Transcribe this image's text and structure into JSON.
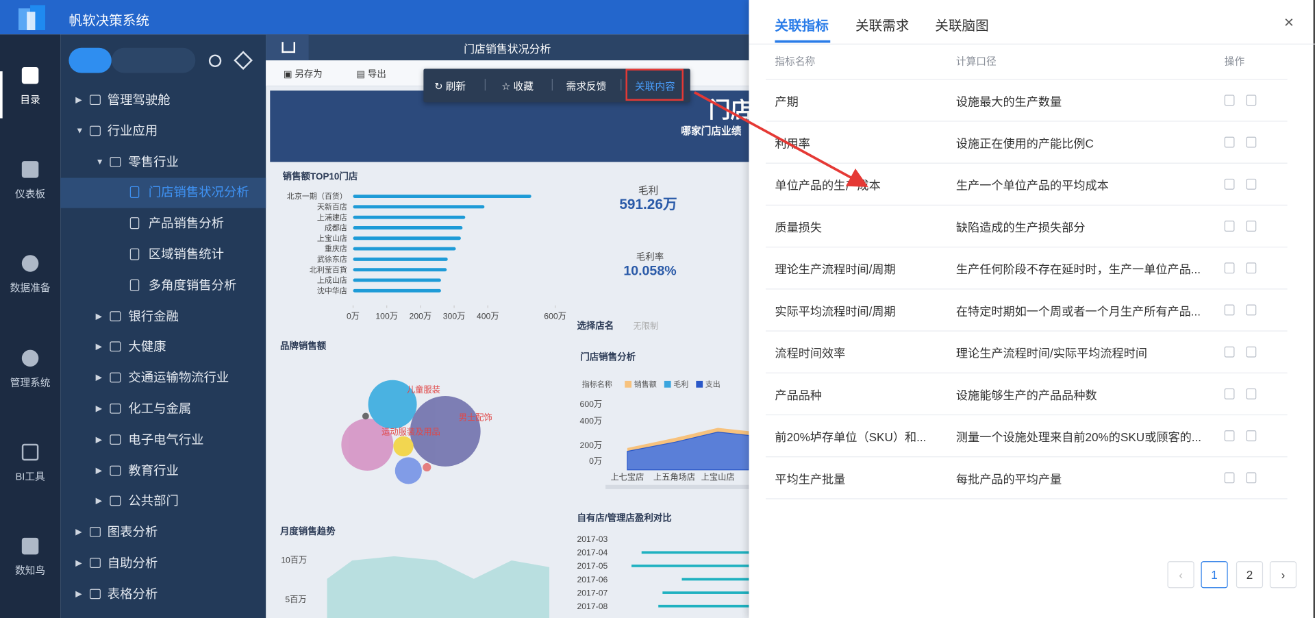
{
  "app": {
    "title": "帆软决策系统"
  },
  "nav": [
    "目录",
    "仪表板",
    "数据准备",
    "管理系统",
    "BI工具",
    "数知鸟"
  ],
  "tree": [
    "管理驾驶舱",
    "行业应用",
    "零售行业",
    "门店销售状况分析",
    "产品销售分析",
    "区域销售统计",
    "多角度销售分析",
    "银行金融",
    "大健康",
    "交通运输物流行业",
    "化工与金属",
    "电子电气行业",
    "教育行业",
    "公共部门",
    "图表分析",
    "自助分析",
    "表格分析"
  ],
  "report_tab": "门店销售状况分析",
  "toolbar": [
    "另存为",
    "导出"
  ],
  "popup": [
    "刷新",
    "收藏",
    "需求反馈",
    "关联内容"
  ],
  "dashboard": {
    "banner_title": "门店",
    "banner_subtitle": "哪家门店业绩",
    "top10": {
      "type": "bar",
      "title": "销售额TOP10门店",
      "categories": [
        "北京一期（百货）",
        "天新百店",
        "上浦建店",
        "成都店",
        "上宝山店",
        "重庆店",
        "武徐东店",
        "北利莹百貨",
        "上成山店",
        "沈中华店"
      ],
      "values": [
        529,
        390,
        333,
        325,
        320,
        305,
        281,
        278,
        261,
        261
      ],
      "color": "#1e9bd7",
      "xlim": [
        0,
        600
      ],
      "xticks": [
        {
          "value": 0,
          "label": "0万"
        },
        {
          "value": 100,
          "label": "100万"
        },
        {
          "value": 200,
          "label": "200万"
        },
        {
          "value": 300,
          "label": "300万"
        },
        {
          "value": 400,
          "label": "400万"
        },
        {
          "value": 600,
          "label": "600万"
        }
      ]
    },
    "profit_label": "毛利",
    "profit_value": "591.26万",
    "margin_label": "毛利率",
    "margin_value": "10.058%",
    "filter_label": "选择店名",
    "filter_value": "无限制",
    "brand_title": "品牌销售额",
    "brand_labels": [
      "儿童服装",
      "运动服装及用品",
      "男士配饰"
    ],
    "store_title": "门店销售分析",
    "legend_title": "指标名称",
    "legend": [
      "销售额",
      "毛利",
      "支出"
    ],
    "store_yticks": [
      "600万",
      "400万",
      "200万",
      "0万"
    ],
    "store_x": [
      "上七宝店",
      "上五角场店",
      "上宝山店"
    ],
    "monthly_title": "月度销售趋势",
    "monthly_yticks": [
      "10百万",
      "5百万"
    ],
    "compare_title": "自有店/管理店盈利对比",
    "compare_dates": [
      "2017-03",
      "2017-04",
      "2017-05",
      "2017-06",
      "2017-07",
      "2017-08"
    ]
  },
  "panel": {
    "tabs": [
      "关联指标",
      "关联需求",
      "关联脑图"
    ],
    "columns": [
      "指标名称",
      "计算口径",
      "操作"
    ],
    "rows": [
      [
        "产期",
        "设施最大的生产数量"
      ],
      [
        "利用率",
        "设施正在使用的产能比例C"
      ],
      [
        "单位产品的生产成本",
        "生产一个单位产品的平均成本"
      ],
      [
        "质量损失",
        "缺陷造成的生产损失部分"
      ],
      [
        "理论生产流程时间/周期",
        "生产任何阶段不存在延时时，生产一单位产品..."
      ],
      [
        "实际平均流程时间/周期",
        "在特定时期如一个周或者一个月生产所有产品..."
      ],
      [
        "流程时间效率",
        "理论生产流程时间/实际平均流程时间"
      ],
      [
        "产品品种",
        "设施能够生产的产品品种数"
      ],
      [
        "前20%垆存单位（SKU）和...",
        "测量一个设施处理来自前20%的SKU或顾客的..."
      ],
      [
        "平均生产批量",
        "每批产品的平均产量"
      ]
    ],
    "pages": [
      1,
      2
    ]
  }
}
